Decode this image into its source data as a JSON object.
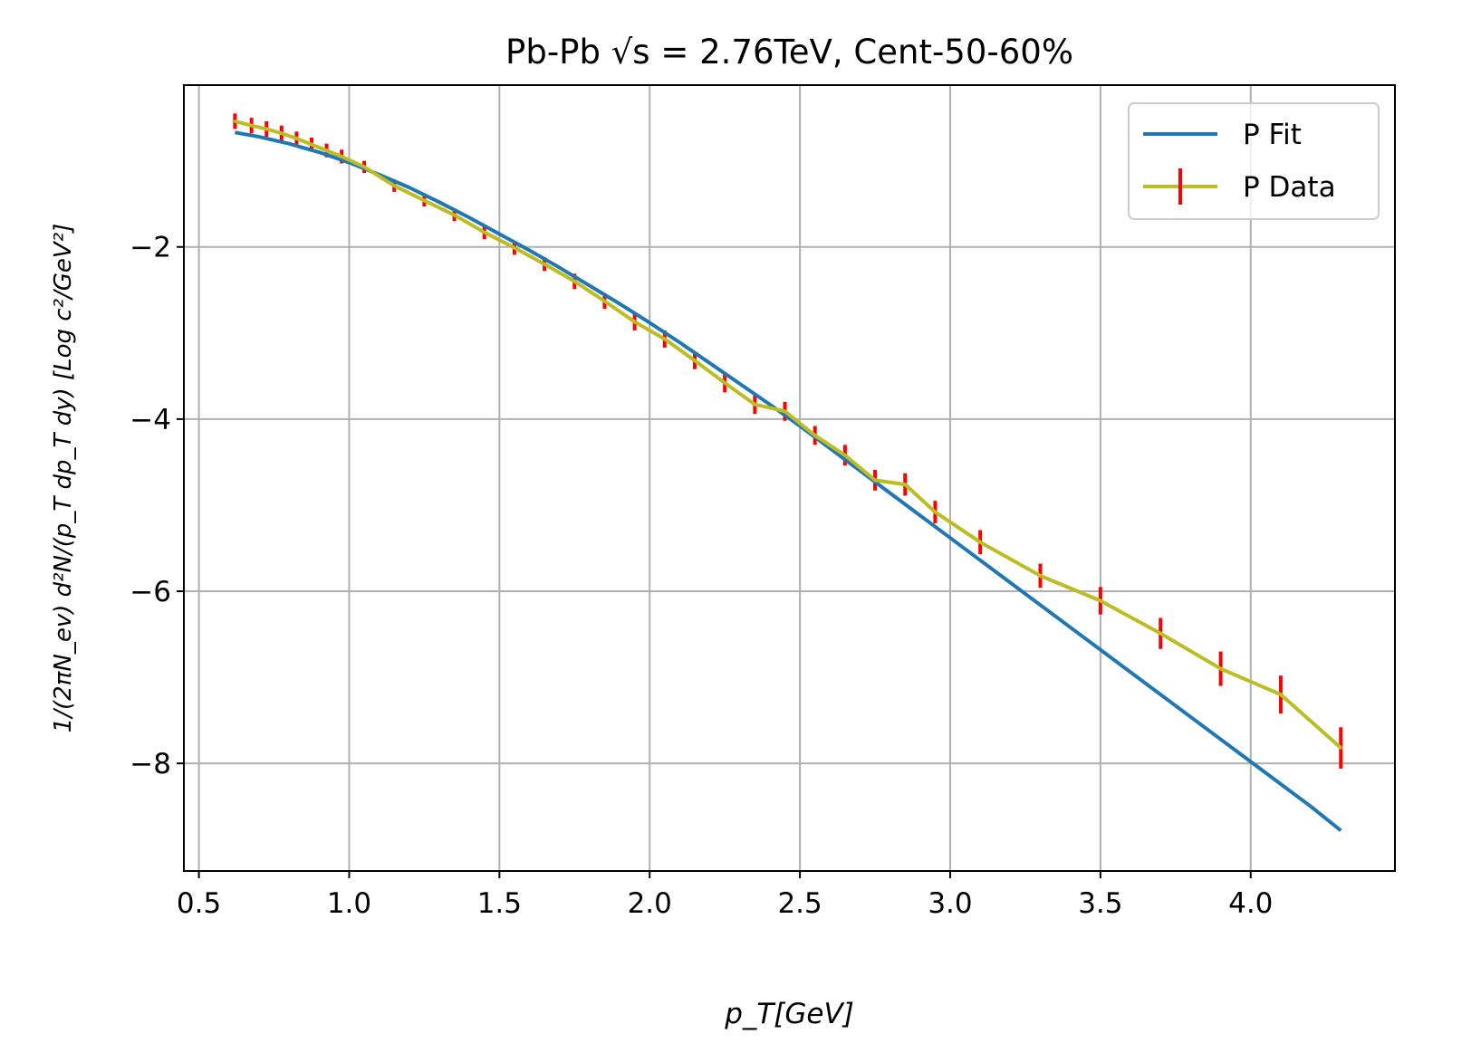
{
  "chart_data": {
    "type": "line",
    "title": "Pb-Pb √s = 2.76TeV, Cent-50-60%",
    "xlabel": "p_T[GeV]",
    "ylabel": "1/(2πN_ev) d²N/(p_T dp_T dy) [Log c²/GeV²]",
    "xlim": [
      0.45,
      4.48
    ],
    "ylim": [
      -9.25,
      -0.12
    ],
    "xticks": [
      0.5,
      1.0,
      1.5,
      2.0,
      2.5,
      3.0,
      3.5,
      4.0
    ],
    "xtick_labels": [
      "0.5",
      "1.0",
      "1.5",
      "2.0",
      "2.5",
      "3.0",
      "3.5",
      "4.0"
    ],
    "yticks": [
      -2,
      -4,
      -6,
      -8
    ],
    "ytick_labels": [
      "−2",
      "−4",
      "−6",
      "−8"
    ],
    "grid": true,
    "legend_position": "top-right",
    "series": [
      {
        "name": "P Fit",
        "color": "#1f77b4",
        "x": [
          0.62,
          0.7,
          0.8,
          0.9,
          1.0,
          1.1,
          1.2,
          1.3,
          1.4,
          1.5,
          1.6,
          1.7,
          1.8,
          1.9,
          2.0,
          2.1,
          2.2,
          2.3,
          2.4,
          2.5,
          2.6,
          2.7,
          2.8,
          2.9,
          3.0,
          3.2,
          3.4,
          3.6,
          3.8,
          4.0,
          4.2,
          4.3
        ],
        "y": [
          -0.67,
          -0.72,
          -0.8,
          -0.9,
          -1.02,
          -1.16,
          -1.31,
          -1.48,
          -1.66,
          -1.85,
          -2.04,
          -2.24,
          -2.45,
          -2.66,
          -2.88,
          -3.11,
          -3.35,
          -3.59,
          -3.83,
          -4.08,
          -4.34,
          -4.6,
          -4.86,
          -5.12,
          -5.38,
          -5.9,
          -6.42,
          -6.94,
          -7.46,
          -7.98,
          -8.5,
          -8.78
        ]
      },
      {
        "name": "P Data",
        "color": "#bcbd22",
        "error_color": "#ff0000",
        "x": [
          0.62,
          0.675,
          0.725,
          0.775,
          0.825,
          0.875,
          0.925,
          0.975,
          1.05,
          1.15,
          1.25,
          1.35,
          1.45,
          1.55,
          1.65,
          1.75,
          1.85,
          1.95,
          2.05,
          2.15,
          2.25,
          2.35,
          2.45,
          2.55,
          2.65,
          2.75,
          2.85,
          2.95,
          3.1,
          3.3,
          3.5,
          3.7,
          3.9,
          4.1,
          4.3
        ],
        "y": [
          -0.54,
          -0.59,
          -0.63,
          -0.68,
          -0.74,
          -0.81,
          -0.88,
          -0.95,
          -1.07,
          -1.29,
          -1.46,
          -1.63,
          -1.83,
          -2.01,
          -2.2,
          -2.4,
          -2.63,
          -2.87,
          -3.07,
          -3.32,
          -3.58,
          -3.83,
          -3.91,
          -4.19,
          -4.42,
          -4.71,
          -4.76,
          -5.08,
          -5.43,
          -5.82,
          -6.11,
          -6.49,
          -6.9,
          -7.2,
          -7.82
        ],
        "yerr": [
          0.09,
          0.09,
          0.09,
          0.09,
          0.08,
          0.08,
          0.08,
          0.08,
          0.07,
          0.07,
          0.07,
          0.07,
          0.08,
          0.08,
          0.08,
          0.09,
          0.09,
          0.1,
          0.1,
          0.1,
          0.11,
          0.11,
          0.11,
          0.11,
          0.12,
          0.12,
          0.13,
          0.13,
          0.14,
          0.14,
          0.16,
          0.18,
          0.2,
          0.22,
          0.24
        ]
      }
    ]
  }
}
